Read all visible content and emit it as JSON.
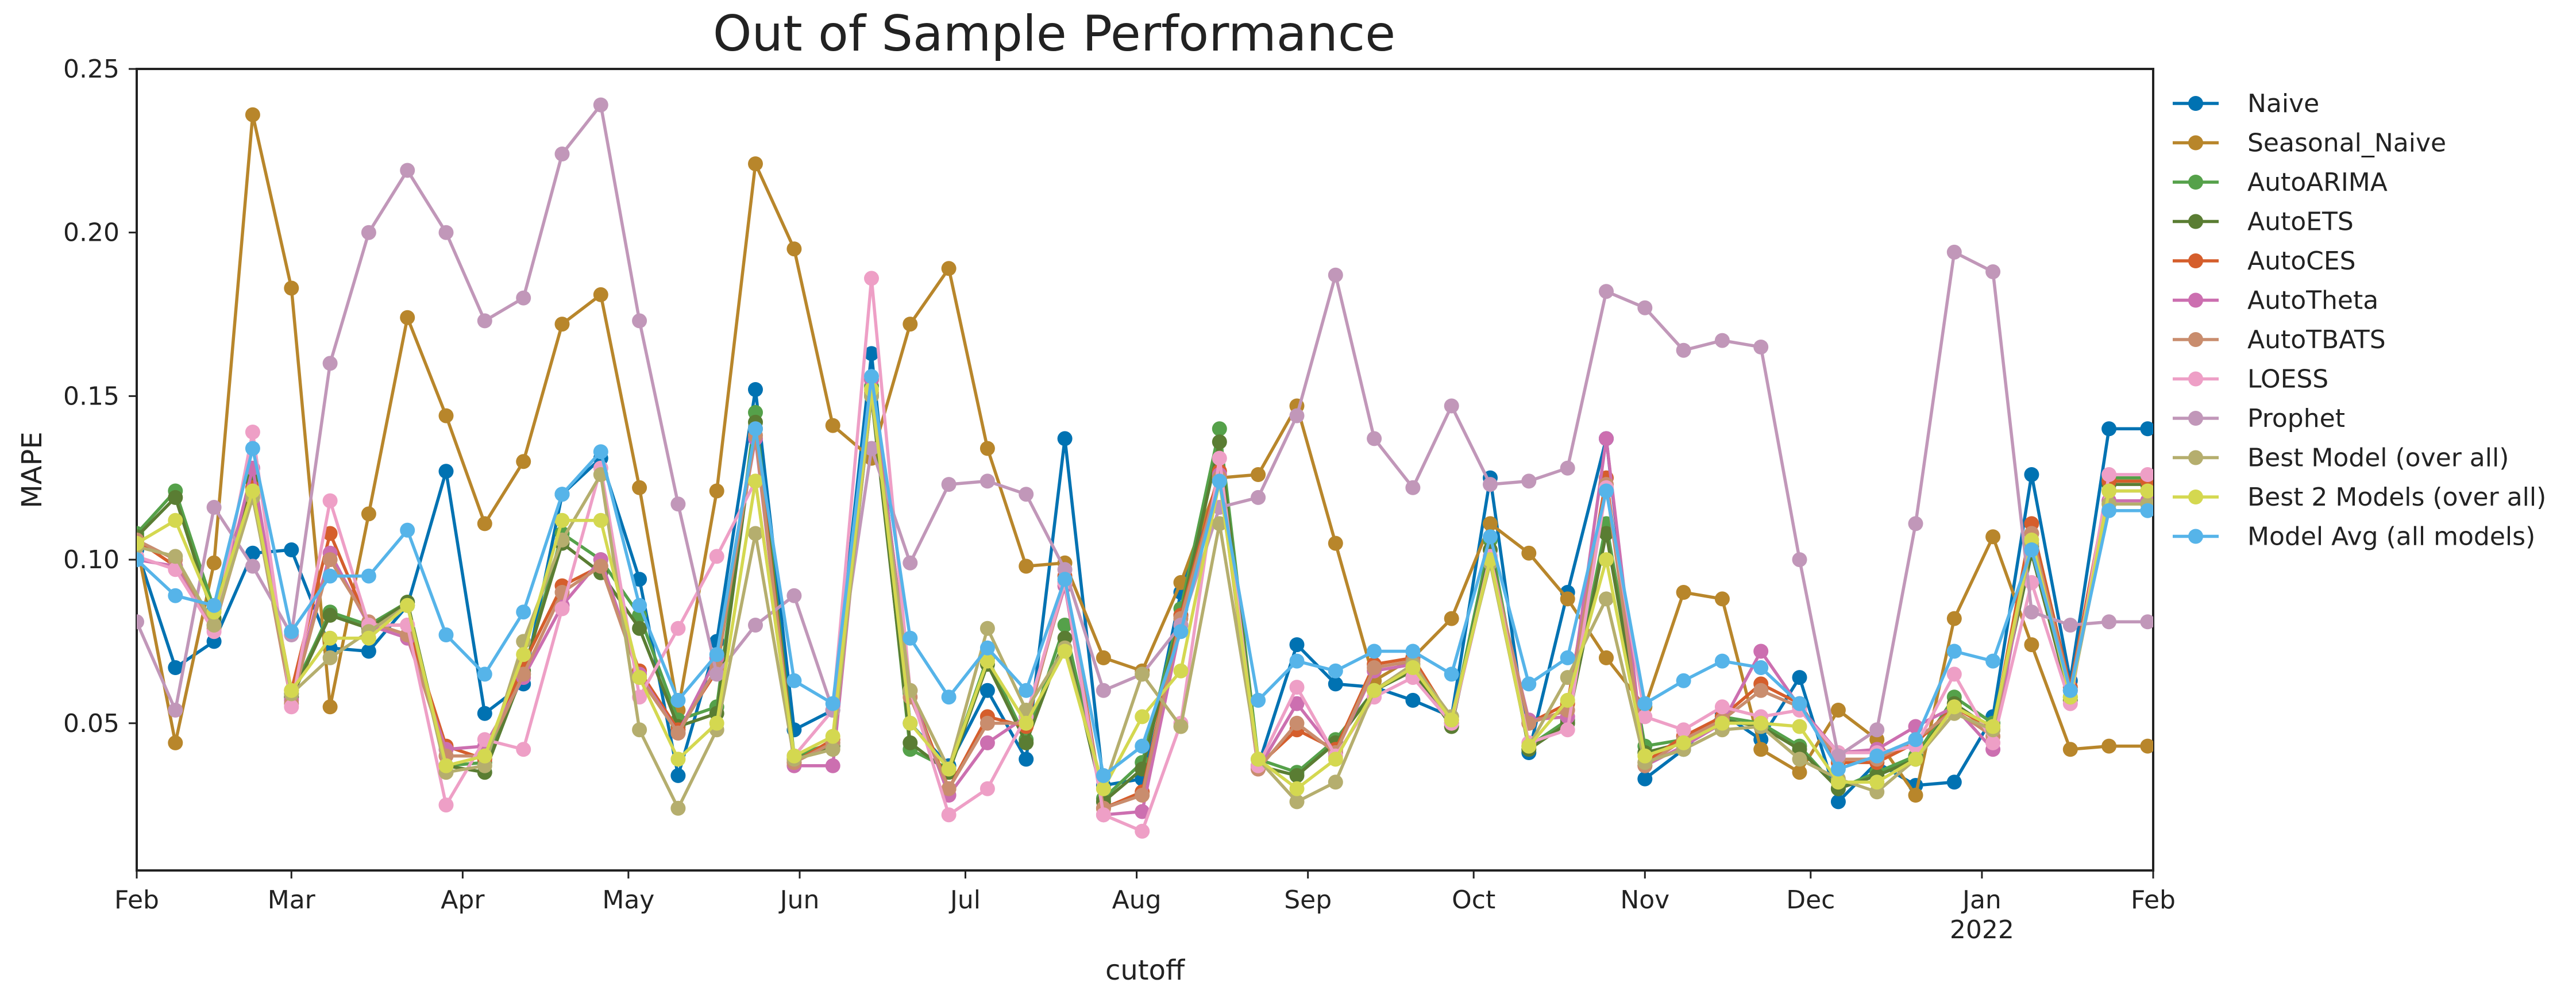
{
  "chart_data": {
    "type": "line",
    "title": "Out of Sample Performance",
    "xlabel": "cutoff",
    "ylabel": "MAPE",
    "xlim": [
      "2021-02-01",
      "2022-02-01"
    ],
    "ylim": [
      0.005,
      0.25
    ],
    "yticks": [
      0.05,
      0.1,
      0.15,
      0.2,
      0.25
    ],
    "ytick_labels": [
      "0.05",
      "0.10",
      "0.15",
      "0.20",
      "0.25"
    ],
    "xticks": [
      {
        "date": "2021-02-01",
        "label": "Feb"
      },
      {
        "date": "2021-03-01",
        "label": "Mar"
      },
      {
        "date": "2021-04-01",
        "label": "Apr"
      },
      {
        "date": "2021-05-01",
        "label": "May"
      },
      {
        "date": "2021-06-01",
        "label": "Jun"
      },
      {
        "date": "2021-07-01",
        "label": "Jul"
      },
      {
        "date": "2021-08-01",
        "label": "Aug"
      },
      {
        "date": "2021-09-01",
        "label": "Sep"
      },
      {
        "date": "2021-10-01",
        "label": "Oct"
      },
      {
        "date": "2021-11-01",
        "label": "Nov"
      },
      {
        "date": "2021-12-01",
        "label": "Dec"
      },
      {
        "date": "2022-01-01",
        "label": "Jan",
        "sublabel": "2022"
      },
      {
        "date": "2022-02-01",
        "label": "Feb"
      }
    ],
    "grid": false,
    "legend_position": "outside-right",
    "x": [
      "2021-02-01",
      "2021-02-08",
      "2021-02-15",
      "2021-02-22",
      "2021-03-01",
      "2021-03-08",
      "2021-03-15",
      "2021-03-22",
      "2021-03-29",
      "2021-04-05",
      "2021-04-12",
      "2021-04-19",
      "2021-04-26",
      "2021-05-03",
      "2021-05-10",
      "2021-05-17",
      "2021-05-24",
      "2021-05-31",
      "2021-06-07",
      "2021-06-14",
      "2021-06-21",
      "2021-06-28",
      "2021-07-05",
      "2021-07-12",
      "2021-07-19",
      "2021-07-26",
      "2021-08-02",
      "2021-08-09",
      "2021-08-16",
      "2021-08-23",
      "2021-08-30",
      "2021-09-06",
      "2021-09-13",
      "2021-09-20",
      "2021-09-27",
      "2021-10-04",
      "2021-10-11",
      "2021-10-18",
      "2021-10-25",
      "2021-11-01",
      "2021-11-08",
      "2021-11-15",
      "2021-11-22",
      "2021-11-29",
      "2021-12-06",
      "2021-12-13",
      "2021-12-20",
      "2021-12-27",
      "2022-01-03",
      "2022-01-10",
      "2022-01-17",
      "2022-01-24",
      "2022-01-31"
    ],
    "series": [
      {
        "name": "Naive",
        "color": "#0072b2",
        "values": [
          0.103,
          0.067,
          0.075,
          0.102,
          0.103,
          0.073,
          0.072,
          0.086,
          0.127,
          0.053,
          0.062,
          0.12,
          0.131,
          0.094,
          0.034,
          0.075,
          0.152,
          0.048,
          0.054,
          0.163,
          0.05,
          0.037,
          0.06,
          0.039,
          0.137,
          0.031,
          0.033,
          0.09,
          0.125,
          0.037,
          0.074,
          0.062,
          0.061,
          0.057,
          0.052,
          0.125,
          0.041,
          0.09,
          0.137,
          0.033,
          0.042,
          0.053,
          0.045,
          0.064,
          0.026,
          0.038,
          0.031,
          0.032,
          0.052,
          0.126,
          0.063,
          0.14,
          0.14
        ]
      },
      {
        "name": "Seasonal_Naive",
        "color": "#b8862b",
        "values": [
          0.105,
          0.044,
          0.099,
          0.236,
          0.183,
          0.055,
          0.114,
          0.174,
          0.144,
          0.111,
          0.13,
          0.172,
          0.181,
          0.122,
          0.054,
          0.121,
          0.221,
          0.195,
          0.141,
          0.131,
          0.172,
          0.189,
          0.134,
          0.098,
          0.099,
          0.07,
          0.066,
          0.093,
          0.125,
          0.126,
          0.147,
          0.105,
          0.063,
          0.07,
          0.082,
          0.111,
          0.102,
          0.088,
          0.07,
          0.055,
          0.09,
          0.088,
          0.042,
          0.035,
          0.054,
          0.045,
          0.028,
          0.082,
          0.107,
          0.074,
          0.042,
          0.043,
          0.043
        ]
      },
      {
        "name": "AutoARIMA",
        "color": "#55a14a",
        "values": [
          0.108,
          0.121,
          0.085,
          0.125,
          0.059,
          0.084,
          0.08,
          0.087,
          0.037,
          0.038,
          0.065,
          0.108,
          0.1,
          0.083,
          0.051,
          0.055,
          0.145,
          0.04,
          0.044,
          0.153,
          0.042,
          0.036,
          0.07,
          0.045,
          0.08,
          0.027,
          0.038,
          0.085,
          0.14,
          0.039,
          0.035,
          0.045,
          0.06,
          0.067,
          0.05,
          0.106,
          0.043,
          0.051,
          0.111,
          0.043,
          0.045,
          0.052,
          0.05,
          0.043,
          0.03,
          0.035,
          0.04,
          0.058,
          0.05,
          0.104,
          0.058,
          0.125,
          0.125
        ]
      },
      {
        "name": "AutoETS",
        "color": "#5a7d33",
        "values": [
          0.107,
          0.119,
          0.082,
          0.124,
          0.058,
          0.083,
          0.079,
          0.087,
          0.037,
          0.035,
          0.066,
          0.105,
          0.096,
          0.079,
          0.049,
          0.053,
          0.142,
          0.039,
          0.043,
          0.15,
          0.044,
          0.035,
          0.068,
          0.044,
          0.076,
          0.026,
          0.036,
          0.083,
          0.136,
          0.037,
          0.034,
          0.044,
          0.06,
          0.066,
          0.049,
          0.103,
          0.042,
          0.05,
          0.108,
          0.041,
          0.044,
          0.051,
          0.049,
          0.042,
          0.03,
          0.034,
          0.039,
          0.056,
          0.048,
          0.102,
          0.057,
          0.123,
          0.123
        ]
      },
      {
        "name": "AutoCES",
        "color": "#d55e2c",
        "values": [
          0.106,
          0.098,
          0.08,
          0.122,
          0.06,
          0.108,
          0.08,
          0.08,
          0.043,
          0.039,
          0.068,
          0.092,
          0.098,
          0.066,
          0.048,
          0.066,
          0.14,
          0.038,
          0.045,
          0.155,
          0.06,
          0.03,
          0.052,
          0.049,
          0.095,
          0.024,
          0.029,
          0.083,
          0.127,
          0.037,
          0.048,
          0.042,
          0.068,
          0.07,
          0.051,
          0.1,
          0.05,
          0.056,
          0.125,
          0.038,
          0.046,
          0.052,
          0.062,
          0.056,
          0.038,
          0.038,
          0.044,
          0.055,
          0.048,
          0.111,
          0.061,
          0.124,
          0.124
        ]
      },
      {
        "name": "AutoTheta",
        "color": "#cc6fb0",
        "values": [
          0.1,
          0.098,
          0.08,
          0.128,
          0.057,
          0.102,
          0.08,
          0.076,
          0.042,
          0.043,
          0.064,
          0.086,
          0.1,
          0.065,
          0.047,
          0.07,
          0.137,
          0.037,
          0.037,
          0.155,
          0.06,
          0.028,
          0.044,
          0.052,
          0.092,
          0.022,
          0.023,
          0.08,
          0.126,
          0.036,
          0.056,
          0.041,
          0.066,
          0.068,
          0.05,
          0.1,
          0.051,
          0.052,
          0.137,
          0.037,
          0.043,
          0.05,
          0.072,
          0.055,
          0.041,
          0.042,
          0.049,
          0.055,
          0.042,
          0.108,
          0.06,
          0.118,
          0.118
        ]
      },
      {
        "name": "AutoTBATS",
        "color": "#c98d6e",
        "values": [
          0.106,
          0.1,
          0.079,
          0.12,
          0.056,
          0.1,
          0.081,
          0.077,
          0.04,
          0.04,
          0.065,
          0.09,
          0.098,
          0.064,
          0.047,
          0.067,
          0.138,
          0.038,
          0.044,
          0.151,
          0.058,
          0.03,
          0.05,
          0.05,
          0.093,
          0.024,
          0.028,
          0.082,
          0.125,
          0.036,
          0.05,
          0.041,
          0.067,
          0.069,
          0.05,
          0.101,
          0.05,
          0.054,
          0.123,
          0.037,
          0.045,
          0.051,
          0.06,
          0.055,
          0.039,
          0.039,
          0.045,
          0.054,
          0.046,
          0.108,
          0.06,
          0.121,
          0.121
        ]
      },
      {
        "name": "LOESS",
        "color": "#ee9fc6",
        "values": [
          0.101,
          0.097,
          0.078,
          0.139,
          0.055,
          0.118,
          0.08,
          0.08,
          0.025,
          0.045,
          0.042,
          0.085,
          0.128,
          0.058,
          0.079,
          0.101,
          0.124,
          0.04,
          0.054,
          0.186,
          0.06,
          0.022,
          0.03,
          0.052,
          0.093,
          0.022,
          0.017,
          0.05,
          0.131,
          0.037,
          0.061,
          0.04,
          0.058,
          0.064,
          0.05,
          0.101,
          0.044,
          0.048,
          0.122,
          0.052,
          0.048,
          0.055,
          0.052,
          0.054,
          0.041,
          0.041,
          0.043,
          0.065,
          0.044,
          0.093,
          0.056,
          0.126,
          0.126
        ]
      },
      {
        "name": "Prophet",
        "color": "#c197b9",
        "values": [
          0.081,
          0.054,
          0.116,
          0.098,
          0.077,
          0.16,
          0.2,
          0.219,
          0.2,
          0.173,
          0.18,
          0.224,
          0.239,
          0.173,
          0.117,
          0.065,
          0.08,
          0.089,
          0.054,
          0.134,
          0.099,
          0.123,
          0.124,
          0.12,
          0.097,
          0.06,
          0.065,
          0.08,
          0.116,
          0.119,
          0.144,
          0.187,
          0.137,
          0.122,
          0.147,
          0.123,
          0.124,
          0.128,
          0.182,
          0.177,
          0.164,
          0.167,
          0.165,
          0.1,
          0.04,
          0.048,
          0.111,
          0.194,
          0.188,
          0.084,
          0.08,
          0.081,
          0.081
        ]
      },
      {
        "name": "Best Model (over all)",
        "color": "#b5ae6e",
        "values": [
          0.104,
          0.101,
          0.08,
          0.119,
          0.059,
          0.07,
          0.078,
          0.086,
          0.035,
          0.037,
          0.075,
          0.106,
          0.126,
          0.048,
          0.024,
          0.048,
          0.108,
          0.039,
          0.042,
          0.15,
          0.06,
          0.036,
          0.079,
          0.054,
          0.073,
          0.03,
          0.065,
          0.049,
          0.111,
          0.039,
          0.026,
          0.032,
          0.06,
          0.068,
          0.052,
          0.099,
          0.043,
          0.064,
          0.088,
          0.038,
          0.042,
          0.048,
          0.049,
          0.039,
          0.033,
          0.029,
          0.039,
          0.053,
          0.048,
          0.105,
          0.058,
          0.117,
          0.117
        ]
      },
      {
        "name": "Best 2 Models (over all)",
        "color": "#d4d850",
        "values": [
          0.105,
          0.112,
          0.084,
          0.121,
          0.06,
          0.076,
          0.076,
          0.086,
          0.037,
          0.04,
          0.071,
          0.112,
          0.112,
          0.064,
          0.039,
          0.05,
          0.124,
          0.04,
          0.046,
          0.152,
          0.05,
          0.036,
          0.069,
          0.05,
          0.072,
          0.03,
          0.052,
          0.066,
          0.124,
          0.039,
          0.03,
          0.039,
          0.06,
          0.067,
          0.051,
          0.1,
          0.043,
          0.057,
          0.1,
          0.04,
          0.044,
          0.05,
          0.05,
          0.049,
          0.032,
          0.032,
          0.039,
          0.055,
          0.049,
          0.106,
          0.058,
          0.121,
          0.121
        ]
      },
      {
        "name": "Model Avg (all models)",
        "color": "#56b4e9",
        "values": [
          0.1,
          0.089,
          0.086,
          0.134,
          0.078,
          0.095,
          0.095,
          0.109,
          0.077,
          0.065,
          0.084,
          0.12,
          0.133,
          0.086,
          0.057,
          0.071,
          0.14,
          0.063,
          0.056,
          0.156,
          0.076,
          0.058,
          0.073,
          0.06,
          0.094,
          0.034,
          0.043,
          0.078,
          0.124,
          0.057,
          0.069,
          0.066,
          0.072,
          0.072,
          0.065,
          0.107,
          0.062,
          0.07,
          0.121,
          0.056,
          0.063,
          0.069,
          0.067,
          0.056,
          0.036,
          0.04,
          0.045,
          0.072,
          0.069,
          0.103,
          0.06,
          0.115,
          0.115
        ]
      }
    ]
  }
}
